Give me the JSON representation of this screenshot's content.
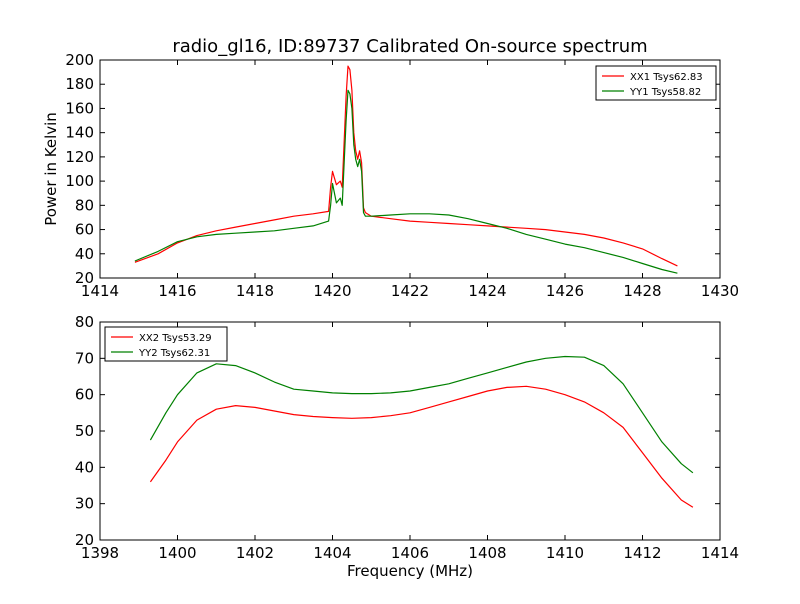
{
  "chart_data": [
    {
      "type": "line",
      "title": "radio_gl16, ID:89737 Calibrated On-source spectrum",
      "xlabel": "",
      "ylabel": "Power in Kelvin",
      "xlim": [
        1414,
        1430
      ],
      "ylim": [
        20,
        200
      ],
      "xticks": [
        1414,
        1416,
        1418,
        1420,
        1422,
        1424,
        1426,
        1428,
        1430
      ],
      "yticks": [
        20,
        40,
        60,
        80,
        100,
        120,
        140,
        160,
        180,
        200
      ],
      "grid": false,
      "legend_position": "top-right",
      "series": [
        {
          "name": "XX1 Tsys62.83",
          "color": "#ff0000",
          "x": [
            1414.9,
            1415.5,
            1416.0,
            1416.5,
            1417.0,
            1417.5,
            1418.0,
            1418.5,
            1419.0,
            1419.5,
            1419.9,
            1419.95,
            1420.0,
            1420.1,
            1420.2,
            1420.25,
            1420.35,
            1420.4,
            1420.45,
            1420.5,
            1420.55,
            1420.6,
            1420.65,
            1420.7,
            1420.75,
            1420.8,
            1420.85,
            1421.0,
            1421.5,
            1422.0,
            1422.5,
            1423.0,
            1423.5,
            1424.0,
            1424.5,
            1425.0,
            1425.5,
            1426.0,
            1426.5,
            1427.0,
            1427.5,
            1428.0,
            1428.5,
            1428.9
          ],
          "y": [
            33,
            40,
            49,
            55,
            59,
            62,
            65,
            68,
            71,
            73,
            75,
            95,
            108,
            97,
            100,
            95,
            170,
            195,
            192,
            175,
            140,
            125,
            118,
            125,
            115,
            78,
            74,
            71,
            69,
            67,
            66,
            65,
            64,
            63,
            62,
            61,
            60,
            58,
            56,
            53,
            49,
            44,
            36,
            30
          ]
        },
        {
          "name": "YY1 Tsys58.82",
          "color": "#008000",
          "x": [
            1414.9,
            1415.5,
            1416.0,
            1416.5,
            1417.0,
            1417.5,
            1418.0,
            1418.5,
            1419.0,
            1419.5,
            1419.9,
            1419.95,
            1420.0,
            1420.1,
            1420.2,
            1420.25,
            1420.35,
            1420.4,
            1420.45,
            1420.5,
            1420.55,
            1420.6,
            1420.65,
            1420.7,
            1420.75,
            1420.8,
            1420.85,
            1421.0,
            1421.5,
            1422.0,
            1422.5,
            1423.0,
            1423.5,
            1424.0,
            1424.5,
            1425.0,
            1425.5,
            1426.0,
            1426.5,
            1427.0,
            1427.5,
            1428.0,
            1428.5,
            1428.9
          ],
          "y": [
            34,
            42,
            50,
            54,
            56,
            57,
            58,
            59,
            61,
            63,
            67,
            80,
            98,
            82,
            86,
            80,
            150,
            175,
            172,
            160,
            130,
            118,
            112,
            118,
            108,
            74,
            71,
            71,
            72,
            73,
            73,
            72,
            69,
            65,
            61,
            56,
            52,
            48,
            45,
            41,
            37,
            32,
            27,
            24
          ]
        }
      ]
    },
    {
      "type": "line",
      "title": "",
      "xlabel": "Frequency (MHz)",
      "ylabel": "",
      "xlim": [
        1398,
        1414
      ],
      "ylim": [
        20,
        80
      ],
      "xticks": [
        1398,
        1400,
        1402,
        1404,
        1406,
        1408,
        1410,
        1412,
        1414
      ],
      "yticks": [
        20,
        30,
        40,
        50,
        60,
        70,
        80
      ],
      "grid": false,
      "legend_position": "top-left",
      "series": [
        {
          "name": "XX2 Tsys53.29",
          "color": "#ff0000",
          "x": [
            1399.3,
            1399.7,
            1400.0,
            1400.5,
            1401.0,
            1401.5,
            1402.0,
            1402.5,
            1403.0,
            1403.5,
            1404.0,
            1404.5,
            1405.0,
            1405.5,
            1406.0,
            1406.5,
            1407.0,
            1407.5,
            1408.0,
            1408.5,
            1409.0,
            1409.5,
            1410.0,
            1410.5,
            1411.0,
            1411.5,
            1412.0,
            1412.5,
            1413.0,
            1413.3
          ],
          "y": [
            36,
            42,
            47,
            53,
            56,
            57,
            56.5,
            55.5,
            54.5,
            54,
            53.7,
            53.5,
            53.7,
            54.2,
            55,
            56.5,
            58,
            59.5,
            61,
            62,
            62.3,
            61.5,
            60,
            58,
            55,
            51,
            44,
            37,
            31,
            29
          ]
        },
        {
          "name": "YY2 Tsys62.31",
          "color": "#008000",
          "x": [
            1399.3,
            1399.7,
            1400.0,
            1400.5,
            1401.0,
            1401.5,
            1402.0,
            1402.5,
            1403.0,
            1403.5,
            1404.0,
            1404.5,
            1405.0,
            1405.5,
            1406.0,
            1406.5,
            1407.0,
            1407.5,
            1408.0,
            1408.5,
            1409.0,
            1409.5,
            1410.0,
            1410.5,
            1411.0,
            1411.5,
            1412.0,
            1412.5,
            1413.0,
            1413.3
          ],
          "y": [
            47.5,
            55,
            60,
            66,
            68.5,
            68,
            66,
            63.5,
            61.5,
            61,
            60.5,
            60.3,
            60.3,
            60.5,
            61,
            62,
            63,
            64.5,
            66,
            67.5,
            69,
            70,
            70.5,
            70.3,
            68,
            63,
            55,
            47,
            41,
            38.5
          ]
        }
      ]
    }
  ]
}
